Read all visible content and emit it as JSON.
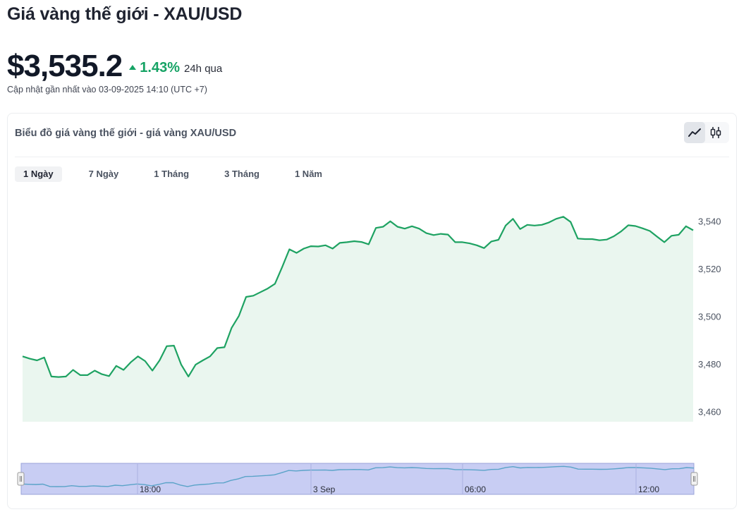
{
  "header": {
    "title": "Giá vàng thế giới - XAU/USD",
    "price": "$3,535.2",
    "change_pct": "1.43%",
    "change_period": "24h qua",
    "updated": "Cập nhật gần nhất vào 03-09-2025 14:10 (UTC +7)"
  },
  "chart_card": {
    "title": "Biểu đồ giá vàng thế giới - giá vàng XAU/USD",
    "chart_modes": [
      "line-chart-icon",
      "candlestick-icon"
    ],
    "active_mode": "line-chart-icon",
    "ranges": [
      {
        "label": "1 Ngày",
        "active": true
      },
      {
        "label": "7 Ngày",
        "active": false
      },
      {
        "label": "1 Tháng",
        "active": false
      },
      {
        "label": "3 Tháng",
        "active": false
      },
      {
        "label": "1 Năm",
        "active": false
      }
    ]
  },
  "colors": {
    "up": "#16a365",
    "line": "#1ea262",
    "area": "#eaf6ef",
    "navigator_bg": "#c8cdf3",
    "navigator_line": "#5aa3c8"
  },
  "chart_data": {
    "type": "area",
    "ylim": [
      3456,
      3550
    ],
    "yticks": [
      3460,
      3480,
      3500,
      3520,
      3540
    ],
    "ytick_labels": [
      "3,460",
      "3,480",
      "3,500",
      "3,520",
      "3,540"
    ],
    "values": [
      3483.5,
      3482.5,
      3481.8,
      3483.0,
      3475.0,
      3474.8,
      3475.0,
      3477.8,
      3475.6,
      3475.6,
      3477.5,
      3476.0,
      3475.2,
      3479.5,
      3477.8,
      3481.0,
      3483.5,
      3481.5,
      3477.5,
      3481.8,
      3487.8,
      3488.0,
      3480.0,
      3475.0,
      3480.0,
      3481.8,
      3483.5,
      3487.0,
      3487.3,
      3495.5,
      3500.5,
      3508.5,
      3509.0,
      3510.5,
      3512.0,
      3514.0,
      3521.0,
      3528.5,
      3527.0,
      3528.8,
      3529.8,
      3529.7,
      3530.2,
      3528.8,
      3531.2,
      3531.5,
      3531.9,
      3531.6,
      3530.6,
      3537.5,
      3538.0,
      3540.3,
      3538.0,
      3537.2,
      3538.2,
      3537.2,
      3535.3,
      3534.5,
      3535.0,
      3534.7,
      3531.5,
      3531.5,
      3531.0,
      3530.2,
      3529.0,
      3531.8,
      3532.5,
      3538.5,
      3541.3,
      3537.0,
      3538.8,
      3538.5,
      3538.8,
      3539.8,
      3541.3,
      3542.2,
      3540.0,
      3533.0,
      3532.8,
      3532.8,
      3532.3,
      3532.6,
      3534.0,
      3536.0,
      3538.6,
      3538.3,
      3537.3,
      3536.2,
      3533.8,
      3531.5,
      3534.2,
      3534.6,
      3538.2,
      3536.5
    ],
    "navigator_labels": [
      "18:00",
      "3 Sep",
      "06:00",
      "12:00"
    ],
    "grid": false,
    "legend": "none"
  }
}
